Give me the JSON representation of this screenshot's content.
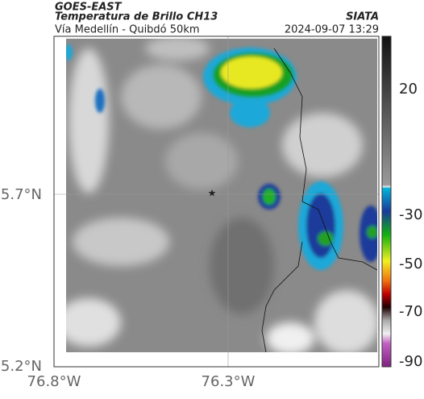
{
  "header": {
    "satellite": "GOES-EAST",
    "product": "Temperatura de Brillo CH13",
    "source": "SIATA",
    "route": "Vía Medellín - Quibdó 50km",
    "datetime": "2024-09-07 13:29"
  },
  "axes": {
    "lat_ticks": [
      "5.7°N",
      "5.2°N"
    ],
    "lon_ticks": [
      "76.8°W",
      "76.3°W"
    ]
  },
  "colorbar": {
    "ticks": [
      "20",
      "-30",
      "-50",
      "-70",
      "-90"
    ]
  }
}
